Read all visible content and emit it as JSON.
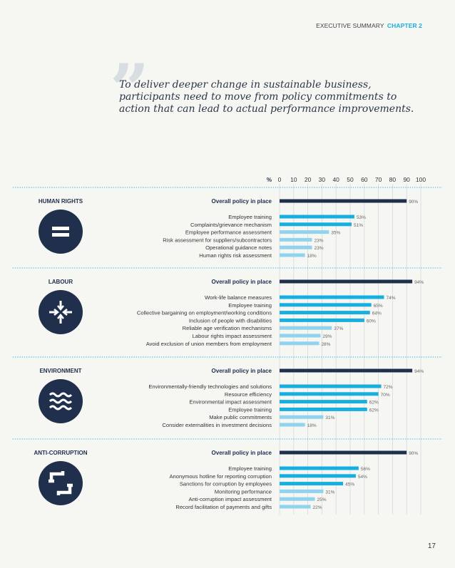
{
  "header": {
    "section": "EXECUTIVE SUMMARY",
    "chapter": "CHAPTER 2"
  },
  "quote": {
    "mark": "”",
    "text": "To deliver deeper change in sustainable business, participants need to move from policy commitments to action that can lead to actual performance improvements."
  },
  "page_number": "17",
  "colors": {
    "navy": "#1f2f4c",
    "bright": "#17aee0",
    "light": "#8fd3ef",
    "dots": "#17aee0"
  },
  "chart_data": {
    "type": "bar",
    "orientation": "horizontal",
    "xlabel": "%",
    "xlim": [
      0,
      100
    ],
    "ticks": [
      0,
      10,
      20,
      30,
      40,
      50,
      60,
      70,
      80,
      90,
      100
    ],
    "grid": true,
    "value_suffix": "%",
    "groups": [
      {
        "name": "HUMAN RIGHTS",
        "icon": "equals-icon",
        "overall_label": "Overall policy in place",
        "overall_value": 90,
        "items": [
          {
            "label": "Employee training",
            "value": 53
          },
          {
            "label": "Complaints/grievance mechanism",
            "value": 51
          },
          {
            "label": "Employee performance assessment",
            "value": 35
          },
          {
            "label": "Risk assessment for suppliers/subcontractors",
            "value": 23
          },
          {
            "label": "Operational guidance notes",
            "value": 23
          },
          {
            "label": "Human rights risk assessment",
            "value": 18
          }
        ]
      },
      {
        "name": "LABOUR",
        "icon": "converging-arrows-icon",
        "overall_label": "Overall policy in place",
        "overall_value": 94,
        "items": [
          {
            "label": "Work-life balance measures",
            "value": 74
          },
          {
            "label": "Employee training",
            "value": 65
          },
          {
            "label": "Collective bargaining on employment/working conditions",
            "value": 64
          },
          {
            "label": "Inclusion of people with disabilities",
            "value": 60
          },
          {
            "label": "Reliable age verification mechanisms",
            "value": 37
          },
          {
            "label": "Labour rights impact assessment",
            "value": 29
          },
          {
            "label": "Avoid exclusion of union members from employment",
            "value": 28
          }
        ]
      },
      {
        "name": "ENVIRONMENT",
        "icon": "waves-icon",
        "overall_label": "Overall policy in place",
        "overall_value": 94,
        "items": [
          {
            "label": "Environmentally-friendly technologies and solutions",
            "value": 72
          },
          {
            "label": "Resource efficiency",
            "value": 70
          },
          {
            "label": "Environmental impact assessment",
            "value": 62
          },
          {
            "label": "Employee training",
            "value": 62
          },
          {
            "label": "Make public commitments",
            "value": 31
          },
          {
            "label": "Consider externalities in investment decisions",
            "value": 18
          }
        ]
      },
      {
        "name": "ANTI-CORRUPTION",
        "icon": "broken-square-icon",
        "overall_label": "Overall policy in place",
        "overall_value": 90,
        "items": [
          {
            "label": "Employee training",
            "value": 56
          },
          {
            "label": "Anonymous hotline for reporting corruption",
            "value": 54
          },
          {
            "label": "Sanctions for corruption by employees",
            "value": 45
          },
          {
            "label": "Monitoring performance",
            "value": 31
          },
          {
            "label": "Anti-corruption impact assessment",
            "value": 25
          },
          {
            "label": "Record facilitation of payments and gifts",
            "value": 22
          }
        ]
      }
    ]
  }
}
